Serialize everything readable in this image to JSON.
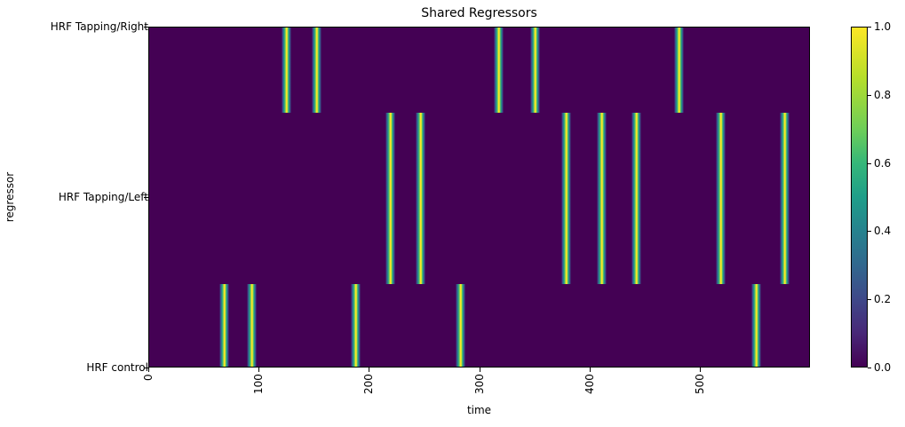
{
  "chart_data": {
    "type": "heatmap",
    "title": "Shared Regressors",
    "xlabel": "time",
    "ylabel": "regressor",
    "xlim": [
      0,
      599
    ],
    "x_ticks": [
      "0",
      "100",
      "200",
      "300",
      "400",
      "500"
    ],
    "y_ticks": [
      "HRF control",
      "HRF Tapping/Left",
      "HRF Tapping/Right"
    ],
    "colormap": "viridis",
    "colorbar": {
      "min": 0.0,
      "max": 1.0,
      "ticks": [
        "0.0",
        "0.2",
        "0.4",
        "0.6",
        "0.8",
        "1.0"
      ]
    },
    "series": [
      {
        "name": "HRF Tapping/Right",
        "peak_times": [
          124,
          152,
          317,
          350,
          480
        ]
      },
      {
        "name": "HRF Tapping/Left",
        "peak_times": [
          219,
          246,
          378,
          410,
          442,
          518,
          576
        ]
      },
      {
        "name": "HRF control",
        "peak_times": [
          68,
          93,
          187,
          282,
          550
        ]
      }
    ],
    "grid": false
  },
  "colors": {
    "background": "#440154",
    "peak": "#fde725"
  }
}
